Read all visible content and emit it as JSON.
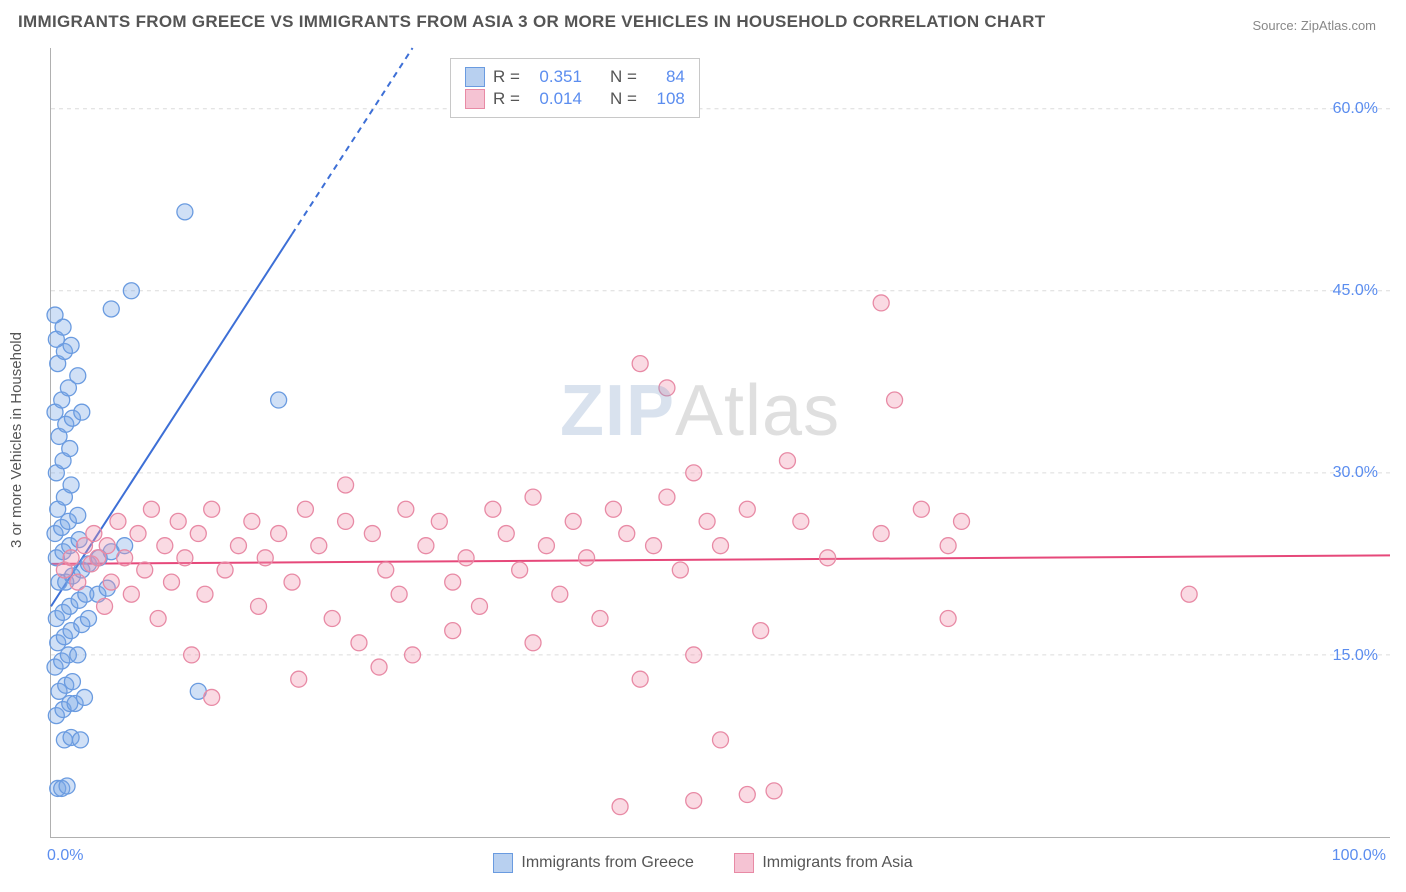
{
  "title": "IMMIGRANTS FROM GREECE VS IMMIGRANTS FROM ASIA 3 OR MORE VEHICLES IN HOUSEHOLD CORRELATION CHART",
  "source": "Source: ZipAtlas.com",
  "watermark_zip": "ZIP",
  "watermark_atlas": "Atlas",
  "y_axis_label": "3 or more Vehicles in Household",
  "chart": {
    "type": "scatter",
    "xlim": [
      0,
      100
    ],
    "ylim": [
      0,
      65
    ],
    "x_ticks": [
      {
        "v": 0,
        "label": "0.0%"
      },
      {
        "v": 100,
        "label": "100.0%"
      }
    ],
    "y_ticks": [
      {
        "v": 15,
        "label": "15.0%"
      },
      {
        "v": 30,
        "label": "30.0%"
      },
      {
        "v": 45,
        "label": "45.0%"
      },
      {
        "v": 60,
        "label": "60.0%"
      }
    ],
    "grid_color": "#dcdcdc",
    "background_color": "#ffffff",
    "axis_color": "#b0b0b0",
    "tick_label_color": "#5b8def",
    "marker_radius": 8,
    "marker_stroke_width": 1.3,
    "series": [
      {
        "name": "Immigrants from Greece",
        "fill": "rgba(120,165,230,0.35)",
        "stroke": "#6a9be0",
        "swatch_fill": "#b8d0f0",
        "swatch_stroke": "#6a9be0",
        "R": "0.351",
        "N": "84",
        "trend": {
          "x1": 0,
          "y1": 19,
          "x2": 27,
          "y2": 65,
          "dash_from_x": 18,
          "color": "#3d6fd6",
          "width": 2
        },
        "points": [
          [
            0.5,
            4
          ],
          [
            0.8,
            4
          ],
          [
            1.2,
            4.2
          ],
          [
            1.0,
            8
          ],
          [
            1.5,
            8.2
          ],
          [
            2.2,
            8
          ],
          [
            0.4,
            10
          ],
          [
            0.9,
            10.5
          ],
          [
            1.4,
            11
          ],
          [
            1.8,
            11
          ],
          [
            2.5,
            11.5
          ],
          [
            0.6,
            12
          ],
          [
            1.1,
            12.5
          ],
          [
            1.6,
            12.8
          ],
          [
            11,
            12
          ],
          [
            0.3,
            14
          ],
          [
            0.8,
            14.5
          ],
          [
            1.3,
            15
          ],
          [
            2.0,
            15
          ],
          [
            0.5,
            16
          ],
          [
            1.0,
            16.5
          ],
          [
            1.5,
            17
          ],
          [
            2.3,
            17.5
          ],
          [
            2.8,
            18
          ],
          [
            0.4,
            18
          ],
          [
            0.9,
            18.5
          ],
          [
            1.4,
            19
          ],
          [
            2.1,
            19.5
          ],
          [
            2.6,
            20
          ],
          [
            3.5,
            20
          ],
          [
            4.2,
            20.5
          ],
          [
            0.6,
            21
          ],
          [
            1.1,
            21
          ],
          [
            1.6,
            21.5
          ],
          [
            2.3,
            22
          ],
          [
            2.8,
            22.5
          ],
          [
            3.6,
            23
          ],
          [
            4.5,
            23.5
          ],
          [
            5.5,
            24
          ],
          [
            0.4,
            23
          ],
          [
            0.9,
            23.5
          ],
          [
            1.4,
            24
          ],
          [
            2.1,
            24.5
          ],
          [
            0.3,
            25
          ],
          [
            0.8,
            25.5
          ],
          [
            1.3,
            26
          ],
          [
            2.0,
            26.5
          ],
          [
            0.5,
            27
          ],
          [
            1.0,
            28
          ],
          [
            1.5,
            29
          ],
          [
            0.4,
            30
          ],
          [
            0.9,
            31
          ],
          [
            1.4,
            32
          ],
          [
            0.6,
            33
          ],
          [
            1.1,
            34
          ],
          [
            1.6,
            34.5
          ],
          [
            2.3,
            35
          ],
          [
            0.3,
            35
          ],
          [
            17,
            36
          ],
          [
            0.8,
            36
          ],
          [
            1.3,
            37
          ],
          [
            2.0,
            38
          ],
          [
            0.5,
            39
          ],
          [
            1.0,
            40
          ],
          [
            1.5,
            40.5
          ],
          [
            0.4,
            41
          ],
          [
            0.9,
            42
          ],
          [
            0.3,
            43
          ],
          [
            4.5,
            43.5
          ],
          [
            6,
            45
          ],
          [
            10,
            51.5
          ]
        ]
      },
      {
        "name": "Immigrants from Asia",
        "fill": "rgba(240,150,175,0.35)",
        "stroke": "#e88aa5",
        "swatch_fill": "#f5c3d3",
        "swatch_stroke": "#e88aa5",
        "R": "0.014",
        "N": "108",
        "trend": {
          "x1": 0,
          "y1": 22.5,
          "x2": 100,
          "y2": 23.2,
          "dash_from_x": 200,
          "color": "#e6487a",
          "width": 2
        },
        "points": [
          [
            1.0,
            22
          ],
          [
            1.5,
            23
          ],
          [
            2.0,
            21
          ],
          [
            2.5,
            24
          ],
          [
            3.0,
            22.5
          ],
          [
            3.2,
            25
          ],
          [
            3.5,
            23
          ],
          [
            4.0,
            19
          ],
          [
            4.2,
            24
          ],
          [
            4.5,
            21
          ],
          [
            5.0,
            26
          ],
          [
            5.5,
            23
          ],
          [
            6.0,
            20
          ],
          [
            6.5,
            25
          ],
          [
            7.0,
            22
          ],
          [
            7.5,
            27
          ],
          [
            8.0,
            18
          ],
          [
            8.5,
            24
          ],
          [
            9.0,
            21
          ],
          [
            9.5,
            26
          ],
          [
            10,
            23
          ],
          [
            10.5,
            15
          ],
          [
            11,
            25
          ],
          [
            11.5,
            20
          ],
          [
            12,
            27
          ],
          [
            13,
            22
          ],
          [
            12,
            11.5
          ],
          [
            14,
            24
          ],
          [
            15,
            26
          ],
          [
            15.5,
            19
          ],
          [
            16,
            23
          ],
          [
            17,
            25
          ],
          [
            18,
            21
          ],
          [
            18.5,
            13
          ],
          [
            19,
            27
          ],
          [
            20,
            24
          ],
          [
            21,
            18
          ],
          [
            22,
            26
          ],
          [
            22,
            29
          ],
          [
            23,
            16
          ],
          [
            24,
            25
          ],
          [
            24.5,
            14
          ],
          [
            25,
            22
          ],
          [
            26,
            20
          ],
          [
            26.5,
            27
          ],
          [
            27,
            15
          ],
          [
            28,
            24
          ],
          [
            29,
            26
          ],
          [
            30,
            21
          ],
          [
            30,
            17
          ],
          [
            31,
            23
          ],
          [
            32,
            19
          ],
          [
            33,
            27
          ],
          [
            34,
            25
          ],
          [
            35,
            22
          ],
          [
            36,
            16
          ],
          [
            36,
            28
          ],
          [
            37,
            24
          ],
          [
            38,
            20
          ],
          [
            39,
            26
          ],
          [
            40,
            23
          ],
          [
            41,
            18
          ],
          [
            42,
            27
          ],
          [
            42.5,
            2.5
          ],
          [
            43,
            25
          ],
          [
            44,
            13
          ],
          [
            44,
            39
          ],
          [
            45,
            24
          ],
          [
            46,
            28
          ],
          [
            46,
            37
          ],
          [
            47,
            22
          ],
          [
            48,
            15
          ],
          [
            48,
            3
          ],
          [
            48,
            30
          ],
          [
            49,
            26
          ],
          [
            50,
            8
          ],
          [
            50,
            24
          ],
          [
            52,
            3.5
          ],
          [
            52,
            27
          ],
          [
            53,
            17
          ],
          [
            54,
            3.8
          ],
          [
            55,
            31
          ],
          [
            56,
            26
          ],
          [
            58,
            23
          ],
          [
            62,
            44
          ],
          [
            62,
            25
          ],
          [
            63,
            36
          ],
          [
            65,
            27
          ],
          [
            67,
            18
          ],
          [
            67,
            24
          ],
          [
            68,
            26
          ],
          [
            85,
            20
          ]
        ]
      }
    ]
  },
  "legend_top": {
    "r_label": "R =",
    "n_label": "N ="
  },
  "legend_bottom": [
    "Immigrants from Greece",
    "Immigrants from Asia"
  ]
}
